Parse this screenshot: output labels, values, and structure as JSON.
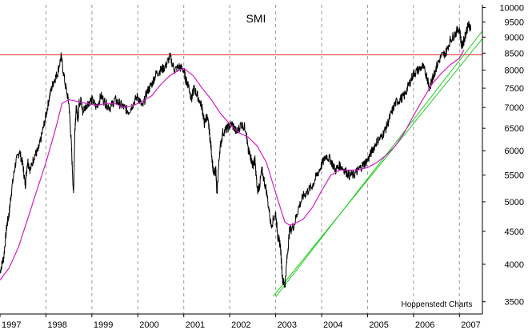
{
  "chart_data": {
    "type": "line",
    "title": "SMI",
    "credit": "Hoppenstedt Charts",
    "xlabel": "",
    "ylabel": "",
    "x_ticks": [
      "1997",
      "1998",
      "1999",
      "2000",
      "2001",
      "2002",
      "2003",
      "2004",
      "2005",
      "2006",
      "2007"
    ],
    "y_ticks": [
      3500,
      4000,
      4500,
      5000,
      5500,
      6000,
      6500,
      7000,
      7500,
      8000,
      8500,
      9000,
      9500,
      10000
    ],
    "xlim": [
      1997.0,
      2007.5
    ],
    "ylim": [
      3350,
      10100
    ],
    "y_scale": "log",
    "grid": "vertical dashed at year boundaries",
    "colors": {
      "price": "#000000",
      "moving_average": "#d21cc8",
      "resistance": "#e02020",
      "trendlines": "#22cc22"
    },
    "series": [
      {
        "role": "price",
        "color": "#000000",
        "x": [
          1997.0,
          1997.08,
          1997.15,
          1997.2,
          1997.25,
          1997.33,
          1997.42,
          1997.5,
          1997.55,
          1997.6,
          1997.66,
          1997.75,
          1997.83,
          1997.9,
          1998.0,
          1998.08,
          1998.17,
          1998.25,
          1998.33,
          1998.42,
          1998.5,
          1998.55,
          1998.6,
          1998.63,
          1998.66,
          1998.7,
          1998.72,
          1998.76,
          1998.8,
          1998.9,
          1999.0,
          1999.1,
          1999.2,
          1999.3,
          1999.4,
          1999.5,
          1999.6,
          1999.7,
          1999.8,
          1999.9,
          2000.0,
          2000.1,
          2000.2,
          2000.3,
          2000.4,
          2000.5,
          2000.6,
          2000.7,
          2000.8,
          2000.9,
          2001.0,
          2001.05,
          2001.1,
          2001.17,
          2001.22,
          2001.3,
          2001.4,
          2001.45,
          2001.5,
          2001.55,
          2001.6,
          2001.65,
          2001.7,
          2001.72,
          2001.78,
          2001.85,
          2001.95,
          2002.05,
          2002.15,
          2002.25,
          2002.35,
          2002.4,
          2002.45,
          2002.5,
          2002.55,
          2002.6,
          2002.65,
          2002.7,
          2002.8,
          2002.9,
          2003.0,
          2003.05,
          2003.1,
          2003.15,
          2003.2,
          2003.25,
          2003.3,
          2003.4,
          2003.5,
          2003.6,
          2003.7,
          2003.8,
          2003.9,
          2004.0,
          2004.1,
          2004.2,
          2004.3,
          2004.4,
          2004.5,
          2004.6,
          2004.7,
          2004.8,
          2004.9,
          2005.0,
          2005.1,
          2005.2,
          2005.3,
          2005.4,
          2005.5,
          2005.6,
          2005.7,
          2005.8,
          2005.9,
          2006.0,
          2006.1,
          2006.2,
          2006.3,
          2006.35,
          2006.4,
          2006.45,
          2006.5,
          2006.6,
          2006.7,
          2006.8,
          2006.9,
          2007.0,
          2007.05,
          2007.1,
          2007.15,
          2007.2,
          2007.25
        ],
        "values": [
          3900,
          4100,
          4600,
          4800,
          5200,
          5700,
          6000,
          5700,
          5300,
          5800,
          5600,
          5900,
          6000,
          6300,
          6800,
          7300,
          7700,
          7900,
          8400,
          7600,
          7100,
          6200,
          5100,
          6500,
          7000,
          6700,
          7100,
          7200,
          6900,
          7100,
          7200,
          7000,
          7300,
          7100,
          7000,
          7200,
          7100,
          7000,
          6900,
          7100,
          7300,
          7000,
          7400,
          7600,
          7900,
          8000,
          8100,
          8400,
          8000,
          8100,
          8000,
          7700,
          7600,
          7200,
          7500,
          7300,
          7000,
          6600,
          6800,
          6500,
          6000,
          5500,
          5600,
          5100,
          6000,
          6400,
          6500,
          6600,
          6400,
          6600,
          6500,
          6000,
          5900,
          5700,
          5800,
          5200,
          5300,
          5600,
          5200,
          4600,
          4800,
          4400,
          4300,
          3800,
          3700,
          4100,
          4500,
          4600,
          4900,
          5100,
          5200,
          5300,
          5500,
          5700,
          5900,
          5800,
          5600,
          5700,
          5600,
          5500,
          5500,
          5600,
          5700,
          5800,
          6000,
          6200,
          6300,
          6500,
          6800,
          7100,
          7200,
          7300,
          7600,
          7900,
          8000,
          8100,
          7800,
          7500,
          7700,
          7900,
          8100,
          8400,
          8500,
          8900,
          9100,
          9300,
          8700,
          8900,
          9200,
          9400,
          9300
        ]
      },
      {
        "role": "moving_average",
        "color": "#d21cc8",
        "x": [
          1997.0,
          1997.2,
          1997.4,
          1997.6,
          1997.8,
          1998.0,
          1998.2,
          1998.35,
          1998.5,
          1998.7,
          1998.9,
          1999.1,
          1999.3,
          1999.5,
          1999.7,
          1999.9,
          2000.1,
          2000.3,
          2000.5,
          2000.7,
          2000.9,
          2001.0,
          2001.2,
          2001.4,
          2001.6,
          2001.8,
          2002.0,
          2002.2,
          2002.4,
          2002.6,
          2002.8,
          2002.95,
          2003.1,
          2003.2,
          2003.3,
          2003.4,
          2003.6,
          2003.8,
          2004.0,
          2004.2,
          2004.4,
          2004.6,
          2004.8,
          2005.0,
          2005.2,
          2005.4,
          2005.6,
          2005.8,
          2006.0,
          2006.2,
          2006.4,
          2006.6,
          2006.8,
          2007.0,
          2007.1
        ],
        "values": [
          3780,
          3950,
          4250,
          4700,
          5200,
          5750,
          6450,
          7100,
          7200,
          7150,
          7100,
          7050,
          7100,
          7100,
          7000,
          7050,
          7150,
          7300,
          7600,
          7850,
          8000,
          8050,
          7850,
          7500,
          7200,
          6850,
          6600,
          6400,
          6300,
          6100,
          5750,
          5300,
          4900,
          4650,
          4600,
          4620,
          4700,
          4900,
          5200,
          5500,
          5600,
          5600,
          5600,
          5650,
          5750,
          5900,
          6100,
          6400,
          6800,
          7200,
          7600,
          7900,
          8150,
          8350,
          8600
        ]
      }
    ],
    "reference_lines": {
      "resistance_level": 8450,
      "trendlines": [
        {
          "from": [
            2002.95,
            3570
          ],
          "to": [
            2007.5,
            8950
          ]
        },
        {
          "from": [
            2003.0,
            3560
          ],
          "to": [
            2007.5,
            9200
          ]
        }
      ]
    }
  }
}
